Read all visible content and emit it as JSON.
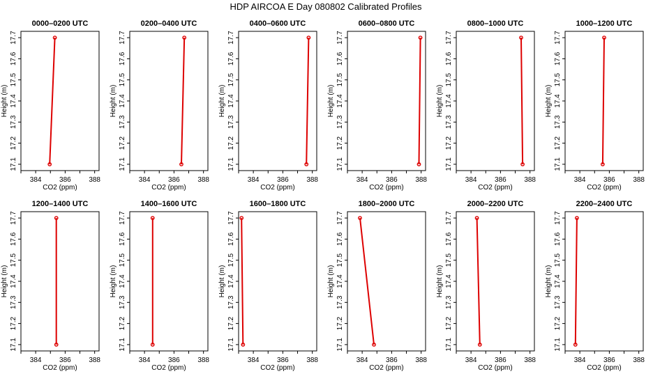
{
  "figure": {
    "title": "HDP AIRCOA E  Day 080802  Calibrated Profiles"
  },
  "style": {
    "series_color": "#dd0000",
    "axis_color": "#000000"
  },
  "chart_data": [
    {
      "type": "line",
      "title": "0000–0200 UTC",
      "xlabel": "CO2 (ppm)",
      "ylabel": "Height (m)",
      "xlim": [
        383,
        388.3
      ],
      "ylim": [
        17.07,
        17.73
      ],
      "xticks": [
        384,
        386,
        388
      ],
      "yticks": [
        17.1,
        17.2,
        17.3,
        17.4,
        17.5,
        17.6,
        17.7
      ],
      "grid": false,
      "series": [
        {
          "x": [
            384.95,
            385.3
          ],
          "y": [
            17.1,
            17.7
          ]
        }
      ]
    },
    {
      "type": "line",
      "title": "0200–0400 UTC",
      "xlabel": "CO2 (ppm)",
      "ylabel": "Height (m)",
      "xlim": [
        383,
        388.3
      ],
      "ylim": [
        17.07,
        17.73
      ],
      "xticks": [
        384,
        386,
        388
      ],
      "yticks": [
        17.1,
        17.2,
        17.3,
        17.4,
        17.5,
        17.6,
        17.7
      ],
      "grid": false,
      "series": [
        {
          "x": [
            386.5,
            386.7
          ],
          "y": [
            17.1,
            17.7
          ]
        }
      ]
    },
    {
      "type": "line",
      "title": "0400–0600 UTC",
      "xlabel": "CO2 (ppm)",
      "ylabel": "Height (m)",
      "xlim": [
        383,
        388.3
      ],
      "ylim": [
        17.07,
        17.73
      ],
      "xticks": [
        384,
        386,
        388
      ],
      "yticks": [
        17.1,
        17.2,
        17.3,
        17.4,
        17.5,
        17.6,
        17.7
      ],
      "grid": false,
      "series": [
        {
          "x": [
            387.6,
            387.75
          ],
          "y": [
            17.1,
            17.7
          ]
        }
      ]
    },
    {
      "type": "line",
      "title": "0600–0800 UTC",
      "xlabel": "CO2 (ppm)",
      "ylabel": "Height (m)",
      "xlim": [
        383,
        388.3
      ],
      "ylim": [
        17.07,
        17.73
      ],
      "xticks": [
        384,
        386,
        388
      ],
      "yticks": [
        17.1,
        17.2,
        17.3,
        17.4,
        17.5,
        17.6,
        17.7
      ],
      "grid": false,
      "series": [
        {
          "x": [
            387.85,
            387.95
          ],
          "y": [
            17.1,
            17.7
          ]
        }
      ]
    },
    {
      "type": "line",
      "title": "0800–1000 UTC",
      "xlabel": "CO2 (ppm)",
      "ylabel": "Height (m)",
      "xlim": [
        383,
        388.3
      ],
      "ylim": [
        17.07,
        17.73
      ],
      "xticks": [
        384,
        386,
        388
      ],
      "yticks": [
        17.1,
        17.2,
        17.3,
        17.4,
        17.5,
        17.6,
        17.7
      ],
      "grid": false,
      "series": [
        {
          "x": [
            387.5,
            387.4
          ],
          "y": [
            17.1,
            17.7
          ]
        }
      ]
    },
    {
      "type": "line",
      "title": "1000–1200 UTC",
      "xlabel": "CO2 (ppm)",
      "ylabel": "Height (m)",
      "xlim": [
        383,
        388.3
      ],
      "ylim": [
        17.07,
        17.73
      ],
      "xticks": [
        384,
        386,
        388
      ],
      "yticks": [
        17.1,
        17.2,
        17.3,
        17.4,
        17.5,
        17.6,
        17.7
      ],
      "grid": false,
      "series": [
        {
          "x": [
            385.55,
            385.65
          ],
          "y": [
            17.1,
            17.7
          ]
        }
      ]
    },
    {
      "type": "line",
      "title": "1200–1400 UTC",
      "xlabel": "CO2 (ppm)",
      "ylabel": "Height (m)",
      "xlim": [
        383,
        388.3
      ],
      "ylim": [
        17.07,
        17.73
      ],
      "xticks": [
        384,
        386,
        388
      ],
      "yticks": [
        17.1,
        17.2,
        17.3,
        17.4,
        17.5,
        17.6,
        17.7
      ],
      "grid": false,
      "series": [
        {
          "x": [
            385.4,
            385.4
          ],
          "y": [
            17.1,
            17.7
          ]
        }
      ]
    },
    {
      "type": "line",
      "title": "1400–1600 UTC",
      "xlabel": "CO2 (ppm)",
      "ylabel": "Height (m)",
      "xlim": [
        383,
        388.3
      ],
      "ylim": [
        17.07,
        17.73
      ],
      "xticks": [
        384,
        386,
        388
      ],
      "yticks": [
        17.1,
        17.2,
        17.3,
        17.4,
        17.5,
        17.6,
        17.7
      ],
      "grid": false,
      "series": [
        {
          "x": [
            384.55,
            384.55
          ],
          "y": [
            17.1,
            17.7
          ]
        }
      ]
    },
    {
      "type": "line",
      "title": "1600–1800 UTC",
      "xlabel": "CO2 (ppm)",
      "ylabel": "Height (m)",
      "xlim": [
        383,
        388.3
      ],
      "ylim": [
        17.07,
        17.73
      ],
      "xticks": [
        384,
        386,
        388
      ],
      "yticks": [
        17.1,
        17.2,
        17.3,
        17.4,
        17.5,
        17.6,
        17.7
      ],
      "grid": false,
      "series": [
        {
          "x": [
            383.3,
            383.2
          ],
          "y": [
            17.1,
            17.7
          ]
        }
      ]
    },
    {
      "type": "line",
      "title": "1800–2000 UTC",
      "xlabel": "CO2 (ppm)",
      "ylabel": "Height (m)",
      "xlim": [
        383,
        388.3
      ],
      "ylim": [
        17.07,
        17.73
      ],
      "xticks": [
        384,
        386,
        388
      ],
      "yticks": [
        17.1,
        17.2,
        17.3,
        17.4,
        17.5,
        17.6,
        17.7
      ],
      "grid": false,
      "series": [
        {
          "x": [
            384.8,
            383.85
          ],
          "y": [
            17.1,
            17.7
          ]
        }
      ]
    },
    {
      "type": "line",
      "title": "2000–2200 UTC",
      "xlabel": "CO2 (ppm)",
      "ylabel": "Height (m)",
      "xlim": [
        383,
        388.3
      ],
      "ylim": [
        17.07,
        17.73
      ],
      "xticks": [
        384,
        386,
        388
      ],
      "yticks": [
        17.1,
        17.2,
        17.3,
        17.4,
        17.5,
        17.6,
        17.7
      ],
      "grid": false,
      "series": [
        {
          "x": [
            384.6,
            384.4
          ],
          "y": [
            17.1,
            17.7
          ]
        }
      ]
    },
    {
      "type": "line",
      "title": "2200–2400 UTC",
      "xlabel": "CO2 (ppm)",
      "ylabel": "Height (m)",
      "xlim": [
        383,
        388.3
      ],
      "ylim": [
        17.07,
        17.73
      ],
      "xticks": [
        384,
        386,
        388
      ],
      "yticks": [
        17.1,
        17.2,
        17.3,
        17.4,
        17.5,
        17.6,
        17.7
      ],
      "grid": false,
      "series": [
        {
          "x": [
            383.7,
            383.8
          ],
          "y": [
            17.1,
            17.7
          ]
        }
      ]
    }
  ]
}
